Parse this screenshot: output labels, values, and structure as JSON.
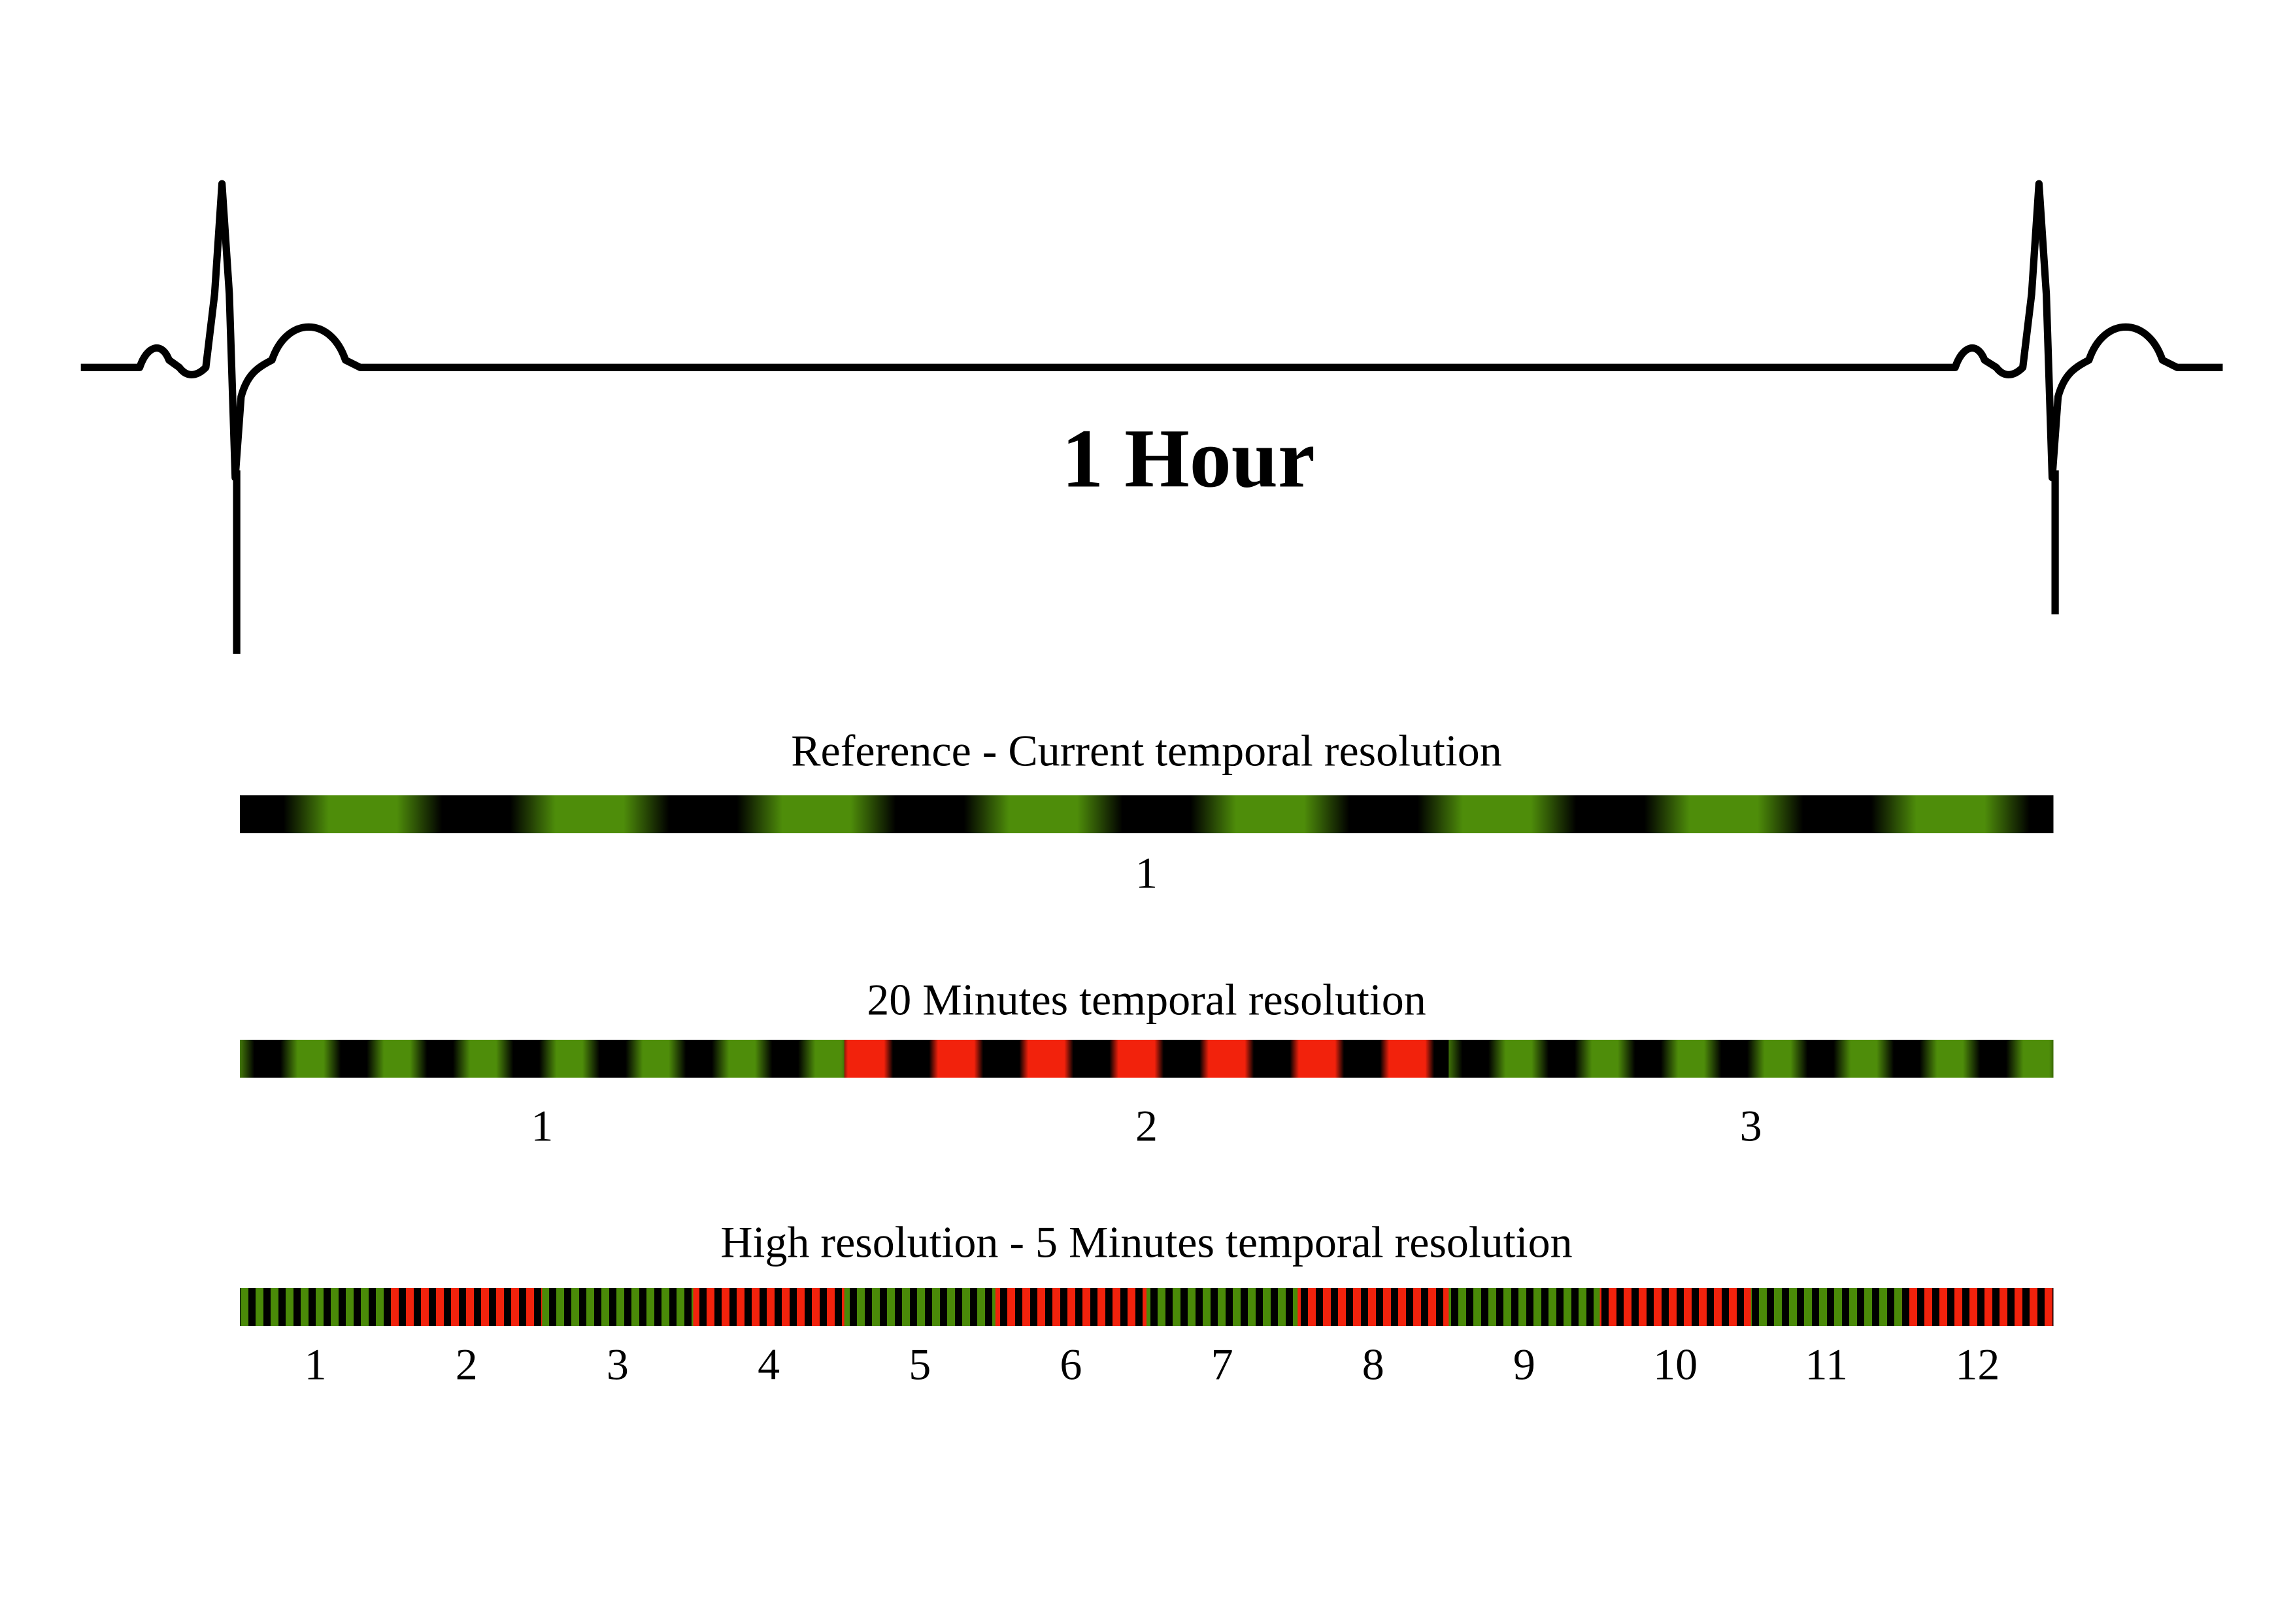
{
  "header_label": "1 Hour",
  "rows": [
    {
      "title": "Reference - Current temporal resolution",
      "labels": [
        "1"
      ]
    },
    {
      "title": "20 Minutes temporal resolution",
      "labels": [
        "1",
        "2",
        "3"
      ]
    },
    {
      "title": "High resolution - 5 Minutes temporal resolution",
      "labels": [
        "1",
        "2",
        "3",
        "4",
        "5",
        "6",
        "7",
        "8",
        "9",
        "10",
        "11",
        "12"
      ]
    }
  ]
}
